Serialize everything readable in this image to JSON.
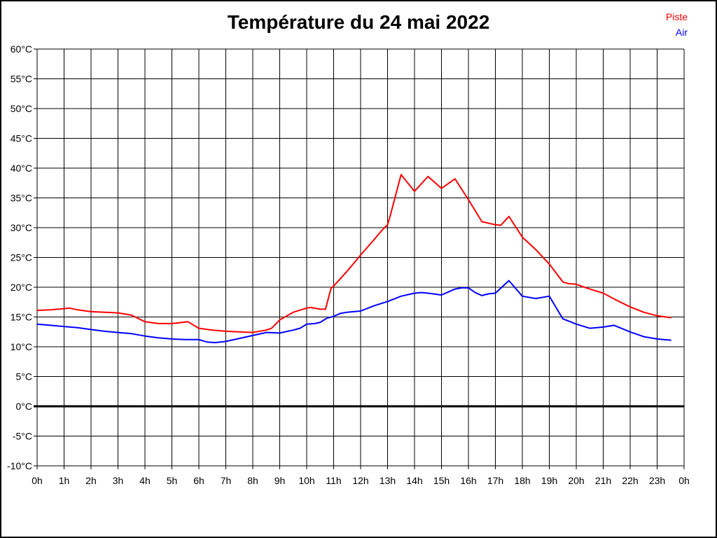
{
  "chart_data": {
    "type": "line",
    "title": "Température du 24 mai 2022",
    "xlabel": "",
    "ylabel": "",
    "xlim": [
      0,
      24
    ],
    "ylim": [
      -10,
      60
    ],
    "y_tick_step": 5,
    "y_tick_suffix": "°C",
    "x_tick_labels": [
      "0h",
      "1h",
      "2h",
      "3h",
      "4h",
      "5h",
      "6h",
      "7h",
      "8h",
      "9h",
      "10h",
      "11h",
      "12h",
      "13h",
      "14h",
      "15h",
      "16h",
      "17h",
      "18h",
      "19h",
      "20h",
      "21h",
      "22h",
      "23h",
      "0h"
    ],
    "grid": true,
    "zero_line_bold": true,
    "grid_color": "#000000",
    "zero_line_color": "#000000",
    "background_color": "#ffffff",
    "legend_position": "top-right",
    "series": [
      {
        "name": "Piste",
        "color": "#ff0000",
        "points": [
          [
            0,
            16.1
          ],
          [
            0.5,
            16.2
          ],
          [
            1,
            16.4
          ],
          [
            1.2,
            16.5
          ],
          [
            1.5,
            16.2
          ],
          [
            2,
            15.9
          ],
          [
            2.5,
            15.8
          ],
          [
            3,
            15.7
          ],
          [
            3.5,
            15.3
          ],
          [
            4,
            14.2
          ],
          [
            4.5,
            13.9
          ],
          [
            5,
            13.9
          ],
          [
            5.6,
            14.2
          ],
          [
            6,
            13.1
          ],
          [
            6.5,
            12.8
          ],
          [
            7,
            12.6
          ],
          [
            7.5,
            12.5
          ],
          [
            8,
            12.4
          ],
          [
            8.5,
            12.8
          ],
          [
            8.7,
            13.1
          ],
          [
            9,
            14.5
          ],
          [
            9.5,
            15.8
          ],
          [
            10,
            16.5
          ],
          [
            10.15,
            16.6
          ],
          [
            10.5,
            16.3
          ],
          [
            10.7,
            16.3
          ],
          [
            10.9,
            19.8
          ],
          [
            11,
            20.2
          ],
          [
            11.5,
            22.7
          ],
          [
            12,
            25.4
          ],
          [
            12.5,
            28.0
          ],
          [
            12.8,
            29.6
          ],
          [
            13,
            30.5
          ],
          [
            13.1,
            32.0
          ],
          [
            13.5,
            38.9
          ],
          [
            14,
            36.1
          ],
          [
            14.5,
            38.6
          ],
          [
            15,
            36.6
          ],
          [
            15.5,
            38.2
          ],
          [
            16,
            34.7
          ],
          [
            16.5,
            31.0
          ],
          [
            17,
            30.5
          ],
          [
            17.2,
            30.4
          ],
          [
            17.5,
            31.9
          ],
          [
            18,
            28.4
          ],
          [
            18.5,
            26.3
          ],
          [
            19,
            23.9
          ],
          [
            19.5,
            20.9
          ],
          [
            19.7,
            20.6
          ],
          [
            20,
            20.5
          ],
          [
            20.3,
            20.0
          ],
          [
            20.5,
            19.7
          ],
          [
            21,
            19.0
          ],
          [
            21.5,
            17.8
          ],
          [
            22,
            16.7
          ],
          [
            22.5,
            15.8
          ],
          [
            23,
            15.2
          ],
          [
            23.5,
            14.9
          ]
        ]
      },
      {
        "name": "Air",
        "color": "#0000ff",
        "points": [
          [
            0,
            13.8
          ],
          [
            0.5,
            13.6
          ],
          [
            1,
            13.4
          ],
          [
            1.5,
            13.2
          ],
          [
            2,
            12.9
          ],
          [
            2.5,
            12.6
          ],
          [
            3,
            12.4
          ],
          [
            3.5,
            12.2
          ],
          [
            4,
            11.8
          ],
          [
            4.5,
            11.5
          ],
          [
            5,
            11.3
          ],
          [
            5.5,
            11.2
          ],
          [
            6,
            11.2
          ],
          [
            6.3,
            10.8
          ],
          [
            6.6,
            10.7
          ],
          [
            7,
            10.9
          ],
          [
            7.5,
            11.4
          ],
          [
            8,
            11.9
          ],
          [
            8.5,
            12.4
          ],
          [
            9,
            12.3
          ],
          [
            9.5,
            12.8
          ],
          [
            9.75,
            13.1
          ],
          [
            10,
            13.8
          ],
          [
            10.3,
            13.9
          ],
          [
            10.5,
            14.1
          ],
          [
            10.75,
            14.8
          ],
          [
            11,
            15.1
          ],
          [
            11.25,
            15.6
          ],
          [
            11.5,
            15.8
          ],
          [
            12,
            16.0
          ],
          [
            12.5,
            16.9
          ],
          [
            13,
            17.6
          ],
          [
            13.5,
            18.5
          ],
          [
            14,
            19.0
          ],
          [
            14.25,
            19.1
          ],
          [
            14.5,
            19.0
          ],
          [
            15,
            18.7
          ],
          [
            15.5,
            19.7
          ],
          [
            15.75,
            19.9
          ],
          [
            16,
            19.9
          ],
          [
            16.25,
            19.1
          ],
          [
            16.5,
            18.6
          ],
          [
            16.75,
            18.9
          ],
          [
            17,
            19.0
          ],
          [
            17.5,
            21.1
          ],
          [
            18,
            18.5
          ],
          [
            18.5,
            18.1
          ],
          [
            19,
            18.5
          ],
          [
            19.25,
            16.6
          ],
          [
            19.5,
            14.7
          ],
          [
            20,
            13.8
          ],
          [
            20.5,
            13.1
          ],
          [
            21,
            13.3
          ],
          [
            21.4,
            13.6
          ],
          [
            22,
            12.5
          ],
          [
            22.5,
            11.7
          ],
          [
            23,
            11.3
          ],
          [
            23.5,
            11.1
          ]
        ]
      }
    ]
  }
}
